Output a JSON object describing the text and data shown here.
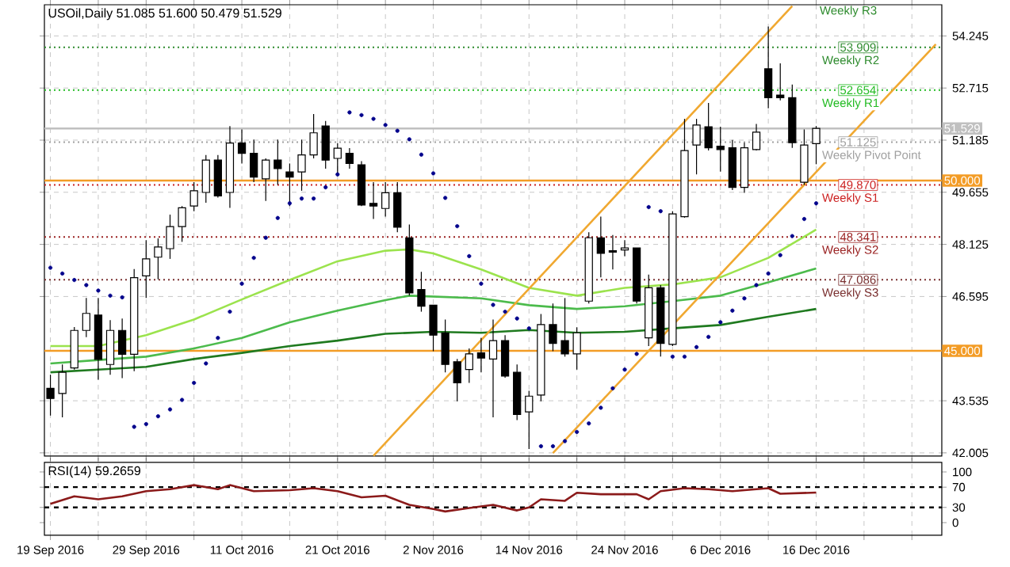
{
  "chart_data": [
    {
      "type": "candlestick",
      "title": "USOil,Daily  51.085 51.600 50.479 51.529",
      "categories": [
        null,
        null,
        null,
        null,
        null,
        null,
        null,
        null,
        null,
        null,
        null,
        null,
        null,
        null,
        null,
        null,
        null,
        null,
        null,
        null,
        null,
        null,
        null,
        null,
        null,
        null,
        null,
        null,
        null,
        null,
        null,
        null,
        null,
        null,
        null,
        null,
        null,
        null,
        null,
        null,
        null,
        null,
        null,
        null,
        null,
        null,
        null,
        null,
        null,
        null,
        null,
        null,
        null,
        null,
        null,
        null,
        null,
        null,
        null,
        null,
        null,
        null,
        null,
        null,
        null,
        null,
        null,
        null,
        null,
        null,
        null,
        null,
        null,
        null,
        null
      ],
      "ohlc": [
        [
          43.9,
          44.3,
          43.1,
          43.6
        ],
        [
          43.75,
          44.6,
          43.05,
          44.37
        ],
        [
          44.5,
          45.7,
          44.45,
          45.6
        ],
        [
          45.6,
          46.55,
          45.4,
          46.1
        ],
        [
          46.05,
          46.55,
          44.15,
          44.75
        ],
        [
          44.6,
          45.9,
          44.3,
          45.6
        ],
        [
          45.6,
          45.95,
          44.2,
          44.9
        ],
        [
          44.9,
          47.4,
          44.4,
          47.15
        ],
        [
          47.2,
          48.25,
          46.55,
          47.7
        ],
        [
          47.75,
          48.3,
          47.1,
          48.05
        ],
        [
          48.0,
          49.0,
          47.7,
          48.65
        ],
        [
          48.65,
          49.25,
          48.2,
          49.2
        ],
        [
          49.25,
          49.95,
          49.1,
          49.7
        ],
        [
          49.65,
          50.75,
          49.35,
          50.6
        ],
        [
          50.6,
          50.75,
          49.5,
          49.55
        ],
        [
          49.65,
          51.6,
          49.2,
          51.1
        ],
        [
          51.1,
          51.5,
          50.5,
          50.8
        ],
        [
          50.8,
          51.2,
          49.95,
          50.1
        ],
        [
          50.05,
          50.65,
          49.4,
          50.6
        ],
        [
          50.6,
          51.2,
          49.87,
          50.35
        ],
        [
          50.25,
          50.5,
          49.25,
          50.1
        ],
        [
          50.25,
          51.2,
          49.7,
          50.75
        ],
        [
          50.75,
          51.95,
          50.65,
          51.4
        ],
        [
          51.6,
          51.75,
          50.35,
          50.6
        ],
        [
          50.65,
          51.1,
          50.2,
          50.95
        ],
        [
          50.8,
          50.95,
          50.35,
          50.5
        ],
        [
          50.46,
          50.57,
          49.25,
          49.28
        ],
        [
          49.33,
          49.95,
          48.87,
          49.25
        ],
        [
          49.18,
          49.95,
          48.94,
          49.64
        ],
        [
          49.64,
          49.95,
          48.48,
          48.63
        ],
        [
          48.32,
          48.71,
          46.62,
          46.7
        ],
        [
          46.8,
          47.32,
          46.15,
          46.31
        ],
        [
          46.34,
          46.34,
          44.99,
          45.46
        ],
        [
          45.53,
          45.92,
          44.37,
          44.6
        ],
        [
          44.68,
          44.76,
          43.52,
          44.06
        ],
        [
          44.45,
          45.07,
          44.06,
          44.91
        ],
        [
          44.94,
          45.38,
          44.37,
          44.79
        ],
        [
          44.76,
          45.92,
          43.05,
          45.3
        ],
        [
          45.3,
          45.46,
          44.21,
          44.26
        ],
        [
          44.37,
          44.6,
          42.97,
          43.13
        ],
        [
          43.21,
          43.83,
          42.12,
          43.67
        ],
        [
          43.7,
          46.08,
          43.52,
          45.77
        ],
        [
          45.77,
          46.39,
          44.99,
          45.22
        ],
        [
          45.3,
          46.55,
          44.83,
          44.91
        ],
        [
          44.91,
          45.69,
          44.45,
          45.53
        ],
        [
          46.46,
          48.48,
          46.39,
          48.32
        ],
        [
          48.32,
          48.94,
          47.16,
          47.86
        ],
        [
          47.94,
          48.4,
          47.39,
          47.9
        ],
        [
          47.96,
          48.25,
          47.78,
          48.02
        ],
        [
          48.02,
          48.02,
          46.39,
          46.46
        ],
        [
          45.38,
          47.24,
          45.14,
          46.85
        ],
        [
          46.85,
          46.93,
          44.83,
          45.22
        ],
        [
          45.19,
          49.1,
          45.14,
          49.02
        ],
        [
          48.94,
          51.81,
          48.91,
          50.88
        ],
        [
          51.04,
          51.81,
          50.18,
          51.63
        ],
        [
          51.58,
          52.28,
          50.88,
          50.96
        ],
        [
          51.01,
          51.58,
          50.26,
          50.91
        ],
        [
          50.96,
          51.19,
          49.72,
          49.8
        ],
        [
          49.8,
          51.11,
          49.64,
          50.96
        ],
        [
          50.91,
          51.66,
          50.88,
          51.42
        ],
        [
          53.28,
          54.52,
          52.12,
          52.43
        ],
        [
          52.51,
          53.44,
          52.35,
          52.43
        ],
        [
          52.43,
          52.82,
          50.96,
          51.11
        ],
        [
          49.95,
          51.5,
          49.87,
          51.04
        ],
        [
          51.085,
          51.6,
          50.479,
          51.529
        ],
        null,
        null,
        null,
        null,
        null,
        null,
        null,
        null,
        null,
        null
      ],
      "series": [
        {
          "type": "line",
          "color": "#9be34d",
          "values": [
            45.14,
            null,
            null,
            null,
            45.14,
            null,
            null,
            null,
            45.46,
            null,
            null,
            null,
            45.92,
            null,
            null,
            null,
            46.51,
            null,
            null,
            null,
            47.08,
            null,
            null,
            null,
            47.63,
            null,
            null,
            null,
            47.94,
            null,
            47.98,
            null,
            47.86,
            null,
            null,
            null,
            47.39,
            null,
            null,
            null,
            46.85,
            null,
            null,
            null,
            46.62,
            null,
            null,
            null,
            46.85,
            null,
            null,
            null,
            46.95,
            null,
            null,
            null,
            47.16,
            null,
            null,
            null,
            47.73,
            null,
            null,
            null,
            48.56,
            null,
            null,
            null,
            null,
            null,
            null,
            null,
            null,
            null,
            null
          ]
        },
        {
          "type": "line",
          "color": "#4cbb4c",
          "values": [
            44.63,
            null,
            null,
            null,
            44.73,
            null,
            null,
            null,
            44.83,
            null,
            null,
            null,
            45.07,
            null,
            null,
            null,
            45.38,
            null,
            null,
            null,
            45.84,
            null,
            null,
            null,
            46.18,
            null,
            null,
            null,
            46.49,
            null,
            46.62,
            null,
            null,
            null,
            null,
            null,
            46.54,
            null,
            null,
            null,
            46.34,
            null,
            null,
            null,
            46.23,
            null,
            null,
            null,
            46.31,
            null,
            null,
            null,
            46.46,
            null,
            null,
            null,
            46.62,
            null,
            null,
            null,
            47.01,
            null,
            null,
            null,
            47.42,
            null,
            null,
            null,
            null,
            null,
            null,
            null,
            null,
            null,
            null
          ]
        },
        {
          "type": "line",
          "color": "#1f7a1f",
          "values": [
            44.37,
            null,
            null,
            null,
            44.45,
            null,
            null,
            null,
            44.53,
            null,
            null,
            null,
            44.76,
            null,
            null,
            null,
            44.94,
            null,
            null,
            null,
            45.14,
            null,
            null,
            null,
            45.3,
            null,
            null,
            null,
            45.5,
            null,
            null,
            null,
            45.56,
            null,
            null,
            null,
            45.53,
            null,
            null,
            null,
            45.61,
            null,
            null,
            null,
            45.53,
            null,
            null,
            null,
            45.56,
            null,
            null,
            null,
            45.66,
            null,
            null,
            null,
            45.76,
            null,
            null,
            null,
            46.0,
            null,
            null,
            null,
            46.23,
            null,
            null,
            null,
            null,
            null,
            null,
            null,
            null,
            null,
            null
          ]
        },
        {
          "type": "scatter",
          "color": "#00008b",
          "marker": "circle",
          "values": [
            47.44,
            47.27,
            47.08,
            46.93,
            46.77,
            46.62,
            46.57,
            42.77,
            42.85,
            43.08,
            43.28,
            43.56,
            44.06,
            44.63,
            45.38,
            46.15,
            46.97,
            47.73,
            48.32,
            48.9,
            49.33,
            49.47,
            49.47,
            49.8,
            50.18,
            52.0,
            51.92,
            51.81,
            51.63,
            51.46,
            51.21,
            50.76,
            50.21,
            49.49,
            48.66,
            47.78,
            46.97,
            46.35,
            46.15,
            45.95,
            45.66,
            42.2,
            42.2,
            42.35,
            42.62,
            42.87,
            43.33,
            43.9,
            44.45,
            44.91,
            49.22,
            49.1,
            44.83,
            44.83,
            45.11,
            45.41,
            45.84,
            46.18,
            46.54,
            46.93,
            47.27,
            47.81,
            48.37,
            48.87,
            49.33,
            null,
            null,
            null,
            null,
            null,
            null,
            null,
            null,
            null,
            null
          ]
        },
        {
          "type": "line",
          "color": "#f0a830",
          "values": [
            null,
            null,
            null,
            null,
            null,
            null,
            null,
            null,
            null,
            null,
            null,
            null,
            null,
            null,
            null,
            null,
            null,
            null,
            null,
            null,
            null,
            null,
            null,
            null,
            null,
            null,
            null,
            41.92,
            null,
            null,
            null,
            null,
            null,
            null,
            null,
            null,
            null,
            null,
            null,
            null,
            null,
            null,
            null,
            null,
            null,
            null,
            null,
            null,
            null,
            null,
            null,
            null,
            null,
            null,
            null,
            null,
            null,
            null,
            null,
            null,
            null,
            null,
            55.12,
            null,
            null,
            null,
            null,
            null,
            null,
            null,
            null,
            null,
            null,
            null,
            null
          ]
        },
        {
          "type": "line",
          "color": "#f0a830",
          "values": [
            null,
            null,
            null,
            null,
            null,
            null,
            null,
            null,
            null,
            null,
            null,
            null,
            null,
            null,
            null,
            null,
            null,
            null,
            null,
            null,
            null,
            null,
            null,
            null,
            null,
            null,
            null,
            null,
            null,
            null,
            null,
            null,
            null,
            null,
            null,
            null,
            null,
            null,
            null,
            null,
            null,
            null,
            42.0,
            null,
            null,
            null,
            null,
            null,
            null,
            null,
            null,
            null,
            null,
            null,
            null,
            null,
            null,
            null,
            null,
            null,
            null,
            null,
            null,
            null,
            null,
            null,
            null,
            null,
            null,
            null,
            null,
            null,
            null,
            null,
            54.0
          ]
        }
      ],
      "ylim": [
        41.91,
        55.16
      ],
      "yticks": [
        54.245,
        52.715,
        51.185,
        49.655,
        48.125,
        46.595,
        43.535,
        42.005
      ],
      "grid": true,
      "tick_labels": "y",
      "ref_lines": [
        {
          "axis": "y",
          "value": 51.529,
          "label": "51.529",
          "color": "#c0c0c0",
          "line_style": "solid"
        },
        {
          "axis": "y",
          "value": 50,
          "label": "50.000",
          "color": "#f39c26",
          "line_style": "solid"
        },
        {
          "axis": "y",
          "value": 45,
          "label": "45.000",
          "color": "#f39c26",
          "line_style": "solid"
        },
        {
          "axis": "y",
          "value": 53.909,
          "label": "53.909",
          "color": "#2e8b2e",
          "line_style": "dotted"
        },
        {
          "axis": "y",
          "value": 52.654,
          "label": "52.654",
          "color": "#22bb22",
          "line_style": "dotted"
        },
        {
          "axis": "y",
          "value": 51.125,
          "label": "51.125",
          "color": "#a0a0a0",
          "line_style": "dotted"
        },
        {
          "axis": "y",
          "value": 49.87,
          "label": "49.870",
          "color": "#cc2222",
          "line_style": "dotted"
        },
        {
          "axis": "y",
          "value": 48.341,
          "label": "48.341",
          "color": "#9a2222",
          "line_style": "dotted"
        },
        {
          "axis": "y",
          "value": 47.086,
          "label": "47.086",
          "color": "#7a3030",
          "line_style": "dotted"
        }
      ],
      "annotations": [
        "Weekly R3",
        "Weekly R2",
        "Weekly R1",
        "Weekly Pivot Point",
        "Weekly S1",
        "Weekly S2",
        "Weekly S3"
      ]
    },
    {
      "type": "line",
      "title": "RSI(14) 59.2659",
      "categories": [
        "19 Sep 2016",
        null,
        null,
        null,
        null,
        null,
        null,
        null,
        "29 Sep 2016",
        null,
        null,
        null,
        null,
        null,
        null,
        null,
        "11 Oct 2016",
        null,
        null,
        null,
        null,
        null,
        null,
        null,
        "21 Oct 2016",
        null,
        null,
        null,
        null,
        null,
        null,
        null,
        "2 Nov 2016",
        null,
        null,
        null,
        null,
        null,
        null,
        null,
        "14 Nov 2016",
        null,
        null,
        null,
        null,
        null,
        null,
        null,
        "24 Nov 2016",
        null,
        null,
        null,
        null,
        null,
        null,
        null,
        "6 Dec 2016",
        null,
        null,
        null,
        null,
        null,
        null,
        null,
        "16 Dec 2016",
        null,
        null,
        null,
        null,
        null,
        null,
        null,
        null,
        null,
        null
      ],
      "series": [
        {
          "color": "#8b1a1a",
          "values": [
            37,
            null,
            52,
            null,
            46,
            null,
            52,
            null,
            62,
            null,
            66,
            null,
            74,
            null,
            66,
            74,
            null,
            62,
            null,
            null,
            64,
            null,
            68,
            null,
            62,
            null,
            50,
            null,
            53,
            null,
            35,
            null,
            27,
            22,
            null,
            29,
            null,
            35,
            null,
            24,
            30,
            46,
            null,
            43,
            59,
            null,
            56,
            null,
            null,
            56,
            46,
            62,
            null,
            68,
            null,
            66,
            null,
            62,
            null,
            null,
            68,
            57,
            null,
            null,
            59.2659,
            null,
            null,
            null,
            null,
            null,
            null,
            null,
            null,
            null,
            null
          ]
        }
      ],
      "ylim": [
        -25,
        118.75
      ],
      "yticks": [
        100,
        70,
        30,
        0
      ],
      "grid": "x",
      "ref_lines": [
        {
          "axis": "y",
          "value": 70,
          "line_style": "dashed",
          "color": "#000000"
        },
        {
          "axis": "y",
          "value": 30,
          "line_style": "dashed",
          "color": "#000000"
        }
      ]
    }
  ]
}
